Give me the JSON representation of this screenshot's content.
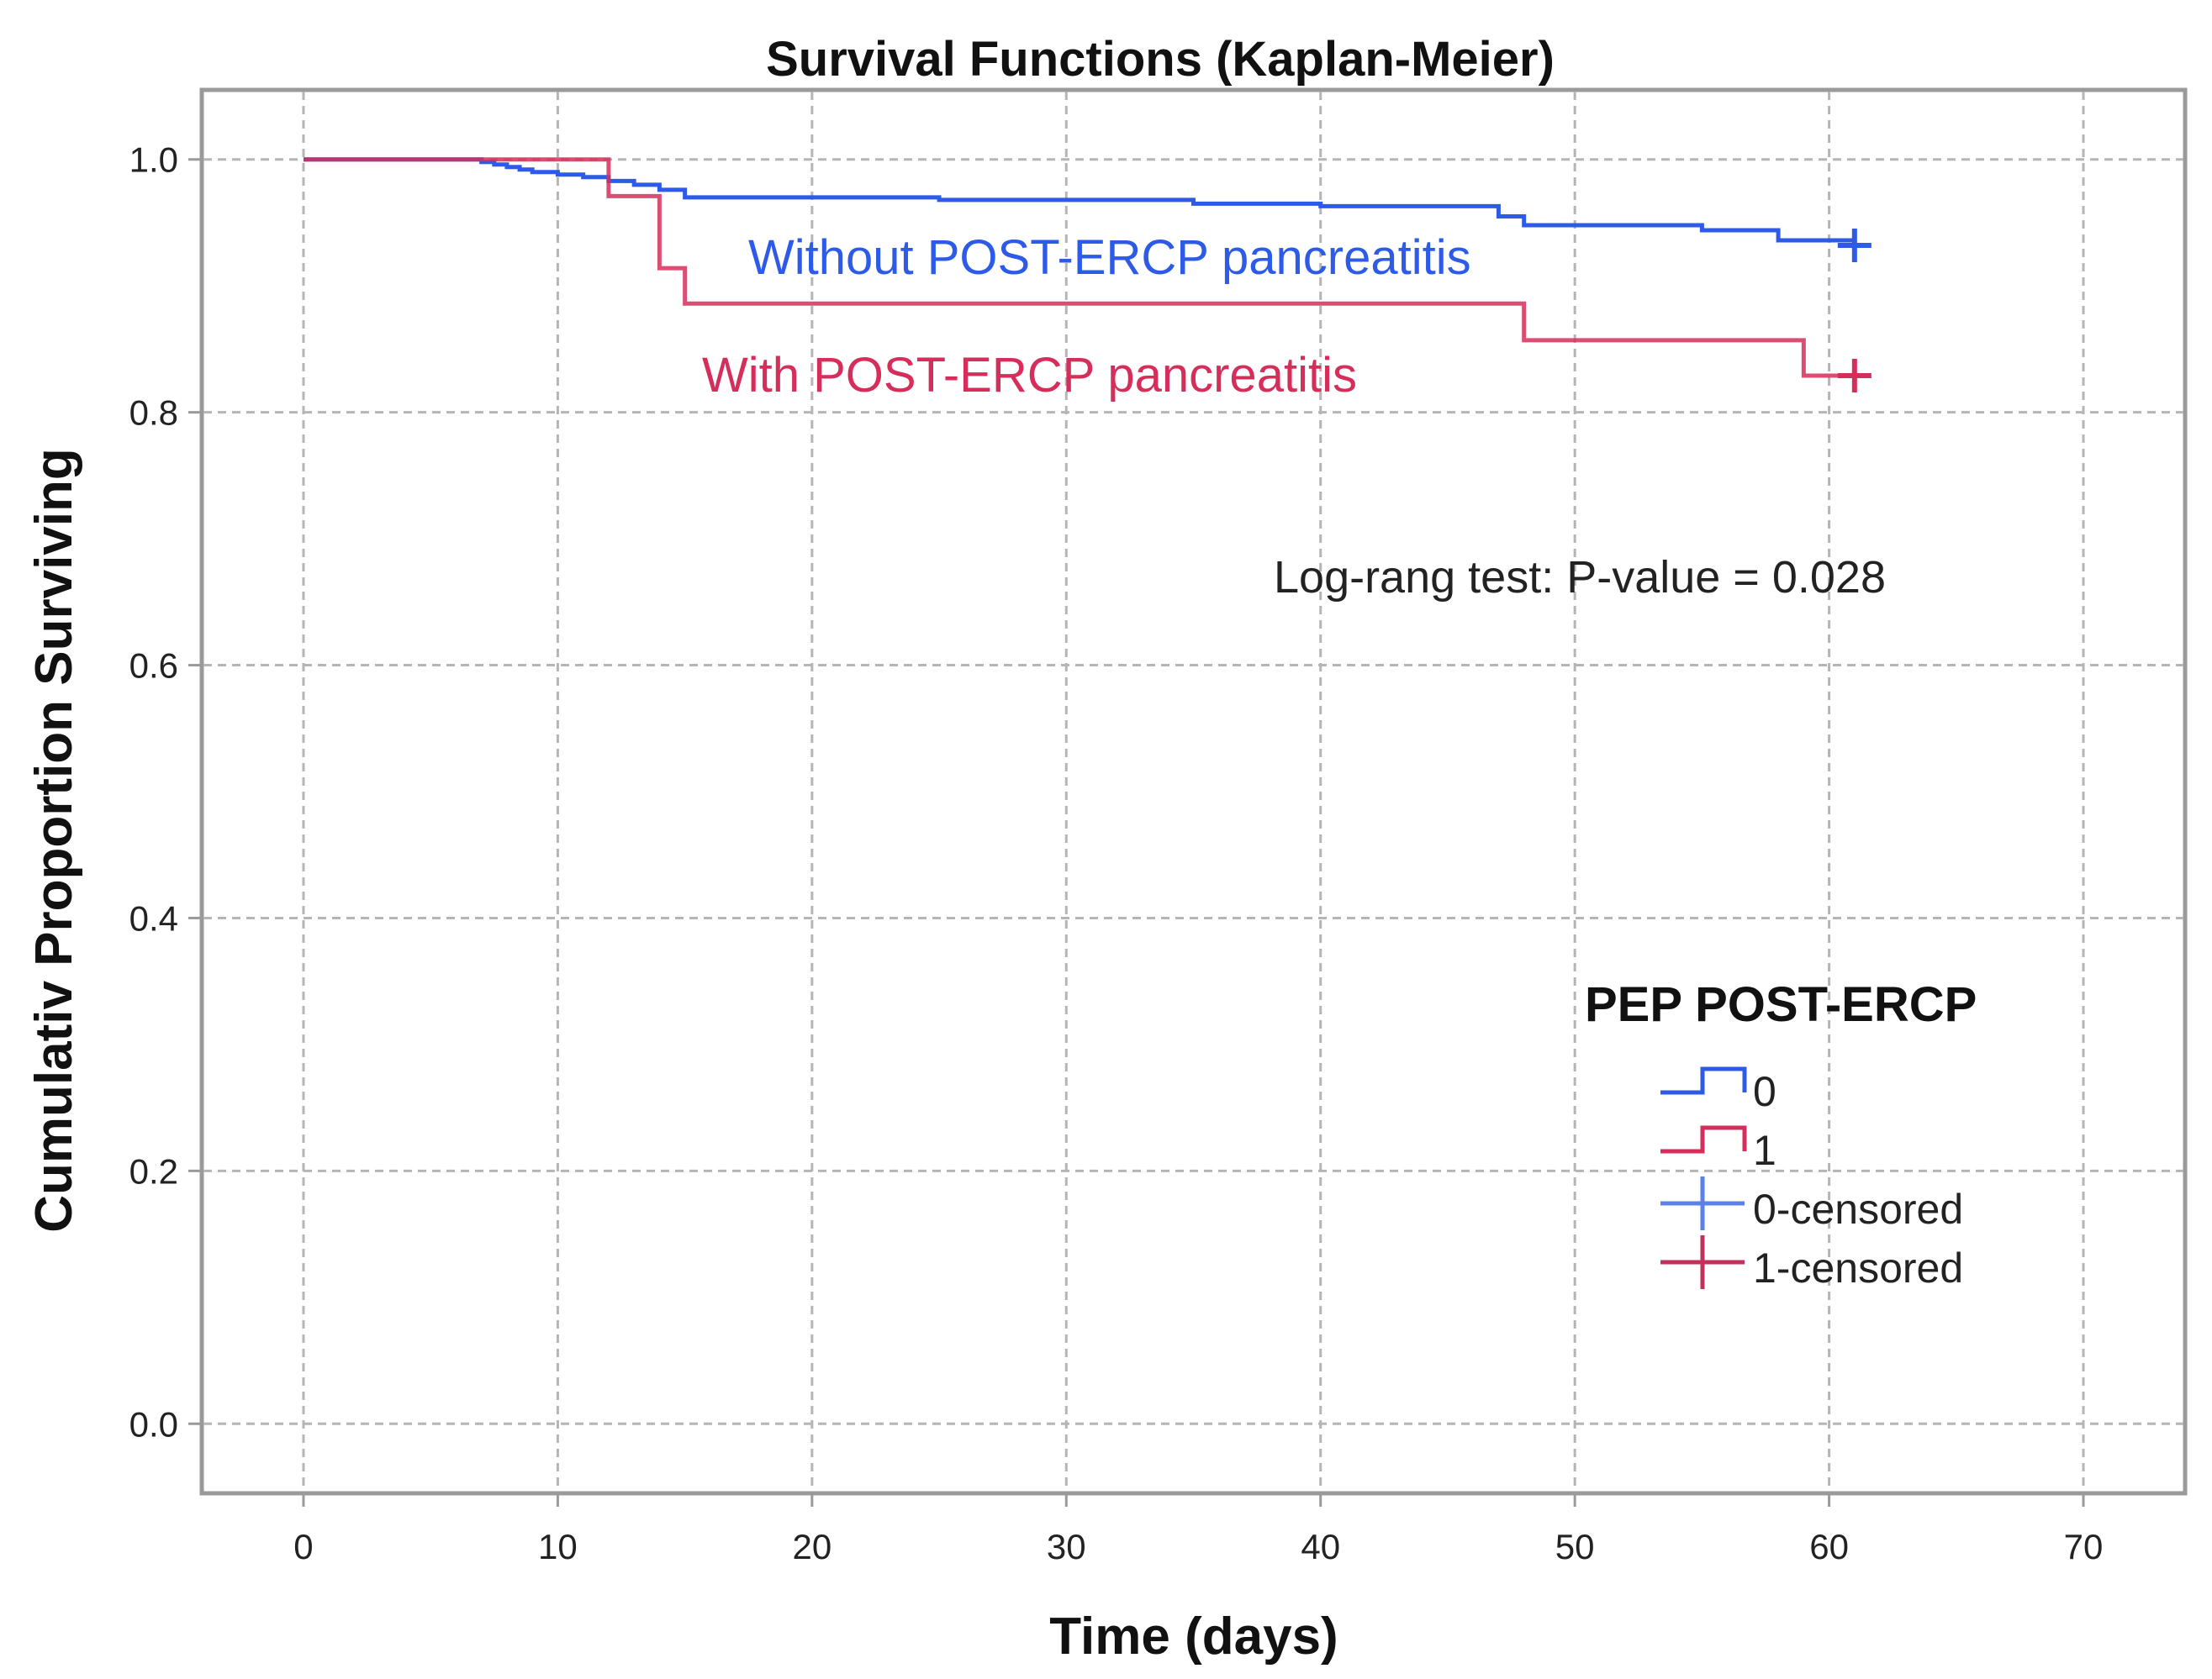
{
  "chart_data": {
    "type": "line",
    "step": true,
    "title": "Survival Functions (Kaplan-Meier)",
    "xlabel": "Time (days)",
    "ylabel": "Cumulativ Proportion Surviving",
    "xlim": [
      -4,
      74
    ],
    "ylim": [
      -0.055,
      1.055
    ],
    "xticks": [
      0,
      10,
      20,
      30,
      40,
      50,
      60,
      70
    ],
    "yticks": [
      0.0,
      0.2,
      0.4,
      0.6,
      0.8,
      1.0
    ],
    "xtick_labels": [
      "0",
      "10",
      "20",
      "30",
      "40",
      "50",
      "60",
      "70"
    ],
    "ytick_labels": [
      "0.0",
      "0.2",
      "0.4",
      "0.6",
      "0.8",
      "1.0"
    ],
    "grid": true,
    "series": [
      {
        "name": "0",
        "color": "#2d5be8",
        "x": [
          0,
          7,
          7.5,
          8,
          8.5,
          9,
          10,
          11,
          12,
          13,
          14,
          15,
          25,
          35,
          40,
          47,
          48,
          55,
          58,
          61
        ],
        "y": [
          1.0,
          0.998,
          0.996,
          0.994,
          0.992,
          0.99,
          0.988,
          0.986,
          0.983,
          0.98,
          0.976,
          0.97,
          0.968,
          0.965,
          0.963,
          0.955,
          0.948,
          0.944,
          0.936,
          0.932
        ],
        "censored": [
          [
            61,
            0.932
          ]
        ]
      },
      {
        "name": "1",
        "color": "#d62e5b",
        "x": [
          0,
          12,
          14,
          15,
          48,
          59,
          61
        ],
        "y": [
          1.0,
          0.971,
          0.914,
          0.886,
          0.857,
          0.829,
          0.829
        ],
        "censored": [
          [
            61,
            0.829
          ]
        ]
      }
    ],
    "annotations": [
      {
        "text": "Without POST-ERCP pancreatitis",
        "color": "#2d5be8"
      },
      {
        "text": "With POST-ERCP pancreatitis",
        "color": "#d62e5b"
      },
      {
        "text": "Log-rang test: P-value = 0.028",
        "color": "#222222"
      }
    ],
    "legend": {
      "title": "PEP POST-ERCP",
      "placement": "right",
      "items": [
        {
          "label": "0",
          "kind": "step",
          "color": "#2d5be8"
        },
        {
          "label": "1",
          "kind": "step",
          "color": "#d62e5b"
        },
        {
          "label": "0-censored",
          "kind": "cross",
          "color": "#5b80e8"
        },
        {
          "label": "1-censored",
          "kind": "cross",
          "color": "#c2305b"
        }
      ]
    }
  }
}
